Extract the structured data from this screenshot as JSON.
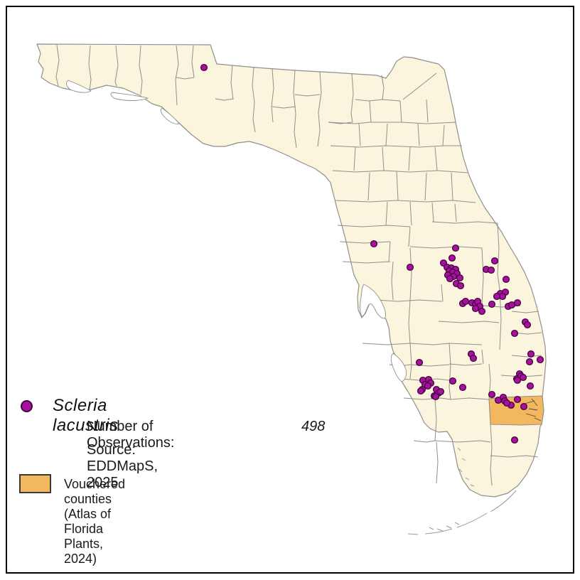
{
  "legend": {
    "species_name": "Scleria lacustris",
    "observations_label": "Number of Observations:",
    "observations_count": "498",
    "source_line": "Source: EDDMapS, 2025",
    "vouchered_label": "Vouchered counties (Atlas of Florida Plants, 2024)"
  },
  "colors": {
    "county_fill": "#FAF5DC",
    "county_border": "#8F8F8F",
    "vouchered_fill": "#F3B75D",
    "dot_fill": "#A811A0",
    "dot_stroke": "#43053E",
    "water": "#FFFFFF"
  },
  "map": {
    "region": "Florida counties",
    "vouchered_region_count": 1,
    "dot_radius": 4.4,
    "dots": [
      [
        287,
        95
      ],
      [
        526,
        343
      ],
      [
        577,
        376
      ],
      [
        641,
        349
      ],
      [
        636,
        363
      ],
      [
        624,
        370
      ],
      [
        629,
        376
      ],
      [
        635,
        377
      ],
      [
        641,
        379
      ],
      [
        632,
        381
      ],
      [
        637,
        383
      ],
      [
        643,
        385
      ],
      [
        630,
        387
      ],
      [
        638,
        389
      ],
      [
        633,
        392
      ],
      [
        647,
        391
      ],
      [
        642,
        399
      ],
      [
        648,
        402
      ],
      [
        696,
        367
      ],
      [
        684,
        379
      ],
      [
        691,
        380
      ],
      [
        712,
        393
      ],
      [
        704,
        413
      ],
      [
        711,
        411
      ],
      [
        707,
        417
      ],
      [
        699,
        417
      ],
      [
        651,
        427
      ],
      [
        655,
        424
      ],
      [
        664,
        426
      ],
      [
        669,
        428
      ],
      [
        672,
        424
      ],
      [
        675,
        431
      ],
      [
        669,
        434
      ],
      [
        678,
        438
      ],
      [
        692,
        428
      ],
      [
        715,
        431
      ],
      [
        728,
        426
      ],
      [
        720,
        429
      ],
      [
        739,
        453
      ],
      [
        742,
        457
      ],
      [
        724,
        469
      ],
      [
        663,
        498
      ],
      [
        666,
        504
      ],
      [
        747,
        498
      ],
      [
        745,
        509
      ],
      [
        760,
        506
      ],
      [
        731,
        526
      ],
      [
        727,
        533
      ],
      [
        733,
        529
      ],
      [
        736,
        531
      ],
      [
        728,
        535
      ],
      [
        746,
        543
      ],
      [
        637,
        536
      ],
      [
        651,
        545
      ],
      [
        590,
        510
      ],
      [
        595,
        535
      ],
      [
        603,
        534
      ],
      [
        606,
        539
      ],
      [
        598,
        541
      ],
      [
        602,
        543
      ],
      [
        594,
        548
      ],
      [
        592,
        550
      ],
      [
        614,
        548
      ],
      [
        617,
        553
      ],
      [
        611,
        557
      ],
      [
        620,
        551
      ],
      [
        613,
        558
      ],
      [
        692,
        555
      ],
      [
        701,
        563
      ],
      [
        708,
        559
      ],
      [
        710,
        564
      ],
      [
        719,
        570
      ],
      [
        728,
        562
      ],
      [
        737,
        572
      ],
      [
        713,
        567
      ],
      [
        724,
        619
      ]
    ]
  }
}
